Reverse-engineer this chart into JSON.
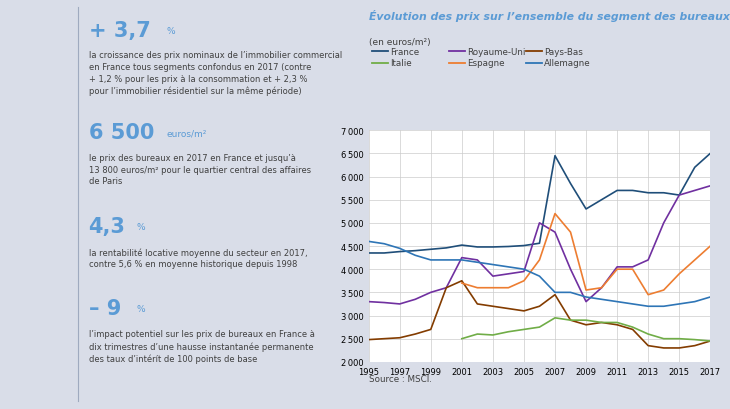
{
  "bg_color": "#d9dde8",
  "chart_bg": "#ffffff",
  "title": "Évolution des prix sur l’ensemble du segment des bureaux par pays",
  "subtitle": "(en euros/m²)",
  "source": "Source : MSCI.",
  "title_color": "#5b9bd5",
  "years": [
    1995,
    1996,
    1997,
    1998,
    1999,
    2000,
    2001,
    2002,
    2003,
    2004,
    2005,
    2006,
    2007,
    2008,
    2009,
    2010,
    2011,
    2012,
    2013,
    2014,
    2015,
    2016,
    2017
  ],
  "series": {
    "France": {
      "color": "#1f4e79",
      "values": [
        4350,
        4350,
        4380,
        4400,
        4430,
        4460,
        4520,
        4480,
        4480,
        4490,
        4510,
        4560,
        6450,
        5850,
        5300,
        5500,
        5700,
        5700,
        5650,
        5650,
        5600,
        6200,
        6500
      ]
    },
    "Royaume-Uni": {
      "color": "#7030a0",
      "values": [
        3300,
        3280,
        3250,
        3350,
        3500,
        3600,
        4250,
        4200,
        3850,
        3900,
        3950,
        5000,
        4800,
        4000,
        3300,
        3600,
        4050,
        4050,
        4200,
        5000,
        5600,
        5700,
        5800
      ]
    },
    "Pays-Bas": {
      "color": "#833c00",
      "values": [
        2480,
        2500,
        2520,
        2600,
        2700,
        3600,
        3750,
        3250,
        3200,
        3150,
        3100,
        3200,
        3450,
        2900,
        2800,
        2850,
        2800,
        2700,
        2350,
        2300,
        2300,
        2350,
        2450
      ]
    },
    "Italie": {
      "color": "#70ad47",
      "values": [
        null,
        null,
        null,
        null,
        null,
        null,
        2500,
        2600,
        2580,
        2650,
        2700,
        2750,
        2950,
        2900,
        2900,
        2850,
        2850,
        2750,
        2600,
        2500,
        2500,
        2480,
        2450
      ]
    },
    "Espagne": {
      "color": "#ed7d31",
      "values": [
        null,
        null,
        null,
        null,
        null,
        null,
        3700,
        3600,
        3600,
        3600,
        3750,
        4200,
        5200,
        4800,
        3550,
        3600,
        4000,
        4000,
        3450,
        3550,
        3900,
        4200,
        4500
      ]
    },
    "Allemagne": {
      "color": "#2e75b6",
      "values": [
        4600,
        4550,
        4450,
        4300,
        4200,
        4200,
        4200,
        4150,
        4100,
        4050,
        4000,
        3850,
        3500,
        3500,
        3400,
        3350,
        3300,
        3250,
        3200,
        3200,
        3250,
        3300,
        3400
      ]
    }
  },
  "ylim": [
    2000,
    7000
  ],
  "yticks": [
    2000,
    2500,
    3000,
    3500,
    4000,
    4500,
    5000,
    5500,
    6000,
    6500,
    7000
  ],
  "left_items": [
    {
      "big": "+ 3,7",
      "small": "%",
      "body": "la croissance des prix nominaux de l’immobilier commercial\nen France tous segments confondus en 2017 (contre\n+ 1,2 % pour les prix à la consommation et + 2,3 %\npour l’immobilier résidentiel sur la même période)"
    },
    {
      "big": "6 500",
      "small": "euros/m²",
      "body": "le prix des bureaux en 2017 en France et jusqu’à\n13 800 euros/m² pour le quartier central des affaires\nde Paris"
    },
    {
      "big": "4,3",
      "small": "%",
      "body": "la rentabilité locative moyenne du secteur en 2017,\ncontre 5,6 % en moyenne historique depuis 1998"
    },
    {
      "big": "– 9",
      "small": "%",
      "body": "l’impact potentiel sur les prix de bureaux en France à\ndix trimestres d’une hausse instantanée permanente\ndes taux d’intérít de 100 points de base"
    }
  ]
}
